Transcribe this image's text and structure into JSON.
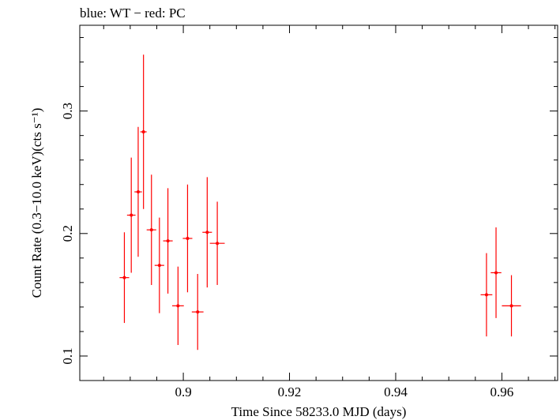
{
  "chart_data": {
    "type": "scatter",
    "title": "blue: WT − red: PC",
    "xlabel": "Time Since 58233.0 MJD (days)",
    "ylabel": "Count Rate (0.3−10.0 keV)(cts s⁻¹)",
    "xlim": [
      0.8805,
      0.9705
    ],
    "ylim": [
      0.08,
      0.37
    ],
    "xticks": [
      {
        "value": 0.9,
        "label": "0.9"
      },
      {
        "value": 0.92,
        "label": "0.92"
      },
      {
        "value": 0.94,
        "label": "0.94"
      },
      {
        "value": 0.96,
        "label": "0.96"
      }
    ],
    "yticks": [
      {
        "value": 0.1,
        "label": "0.1"
      },
      {
        "value": 0.2,
        "label": "0.2"
      },
      {
        "value": 0.3,
        "label": "0.3"
      }
    ],
    "series": [
      {
        "name": "PC",
        "color": "#ff0000",
        "points": [
          {
            "x": 0.8889,
            "xerr": 0.0009,
            "y": 0.164,
            "yerr_lo": 0.037,
            "yerr_hi": 0.037
          },
          {
            "x": 0.8902,
            "xerr": 0.0008,
            "y": 0.215,
            "yerr_lo": 0.047,
            "yerr_hi": 0.047
          },
          {
            "x": 0.8915,
            "xerr": 0.0007,
            "y": 0.234,
            "yerr_lo": 0.053,
            "yerr_hi": 0.053
          },
          {
            "x": 0.8925,
            "xerr": 0.0006,
            "y": 0.283,
            "yerr_lo": 0.063,
            "yerr_hi": 0.063
          },
          {
            "x": 0.894,
            "xerr": 0.0009,
            "y": 0.203,
            "yerr_lo": 0.045,
            "yerr_hi": 0.045
          },
          {
            "x": 0.8955,
            "xerr": 0.0009,
            "y": 0.174,
            "yerr_lo": 0.039,
            "yerr_hi": 0.039
          },
          {
            "x": 0.8971,
            "xerr": 0.0009,
            "y": 0.194,
            "yerr_lo": 0.043,
            "yerr_hi": 0.043
          },
          {
            "x": 0.899,
            "xerr": 0.0011,
            "y": 0.141,
            "yerr_lo": 0.032,
            "yerr_hi": 0.032
          },
          {
            "x": 0.9008,
            "xerr": 0.0009,
            "y": 0.196,
            "yerr_lo": 0.044,
            "yerr_hi": 0.044
          },
          {
            "x": 0.9027,
            "xerr": 0.0011,
            "y": 0.136,
            "yerr_lo": 0.031,
            "yerr_hi": 0.031
          },
          {
            "x": 0.9045,
            "xerr": 0.0009,
            "y": 0.201,
            "yerr_lo": 0.045,
            "yerr_hi": 0.045
          },
          {
            "x": 0.9064,
            "xerr": 0.0014,
            "y": 0.192,
            "yerr_lo": 0.034,
            "yerr_hi": 0.034
          },
          {
            "x": 0.9571,
            "xerr": 0.0011,
            "y": 0.15,
            "yerr_lo": 0.034,
            "yerr_hi": 0.034
          },
          {
            "x": 0.9589,
            "xerr": 0.001,
            "y": 0.168,
            "yerr_lo": 0.037,
            "yerr_hi": 0.037
          },
          {
            "x": 0.9618,
            "xerr": 0.0018,
            "y": 0.141,
            "yerr_lo": 0.025,
            "yerr_hi": 0.025
          }
        ]
      }
    ]
  }
}
